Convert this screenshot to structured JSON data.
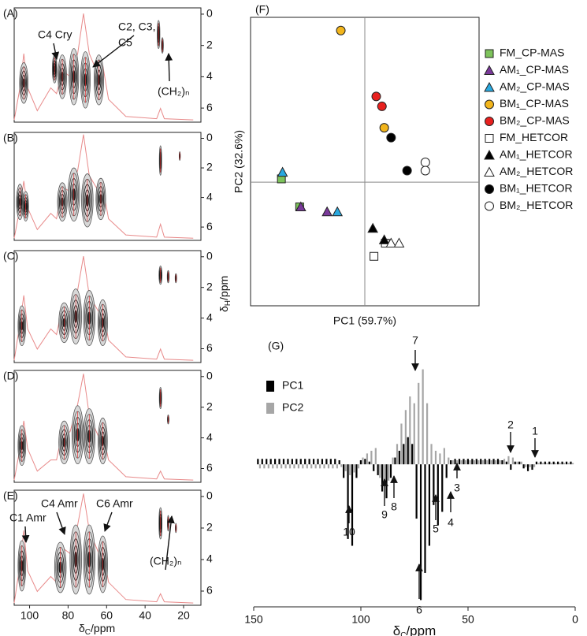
{
  "chart_data": [
    {
      "type": "contour",
      "label": "(A)",
      "xlim": [
        108,
        11
      ],
      "ylim": [
        6.9,
        -0.4
      ],
      "yticks": [
        0,
        2,
        4,
        6
      ],
      "peaks": [
        [
          103,
          4.4,
          2.2,
          1.3
        ],
        [
          87,
          3.5,
          1.2,
          0.9
        ],
        [
          83,
          4,
          2.2,
          1.4
        ],
        [
          77,
          4,
          2.5,
          1.8
        ],
        [
          71,
          4.2,
          2.5,
          1.8
        ],
        [
          64,
          4.2,
          2.5,
          1.6
        ],
        [
          33,
          1.3,
          0.7,
          0.9
        ],
        [
          31,
          2,
          0.5,
          0.5
        ]
      ],
      "spectrum": {
        "color": "#e88a8a",
        "x": [
          110,
          105,
          103,
          101,
          96,
          89,
          86,
          83,
          79,
          75,
          72,
          69,
          64,
          62,
          59,
          50,
          34,
          32,
          30,
          15
        ],
        "values": [
          0.02,
          0.3,
          0.6,
          0.3,
          0.1,
          0.3,
          0.25,
          0.45,
          0.4,
          0.6,
          0.95,
          0.6,
          0.4,
          0.5,
          0.2,
          0.05,
          0.03,
          0.12,
          0.03,
          0.02
        ]
      },
      "annotations": [
        "C4 Cry",
        "C2, C3,",
        "C5",
        "(CH₂)ₙ"
      ]
    },
    {
      "type": "contour",
      "label": "(B)",
      "xlim": [
        108,
        11
      ],
      "ylim": [
        6.9,
        -0.4
      ],
      "yticks": [
        0,
        2,
        4,
        6
      ],
      "peaks": [
        [
          105,
          4.3,
          1.8,
          1.2
        ],
        [
          102,
          4.6,
          1.5,
          1
        ],
        [
          83,
          4.3,
          2.5,
          1.3
        ],
        [
          77,
          3.8,
          3,
          1.8
        ],
        [
          70,
          4.2,
          3,
          1.8
        ],
        [
          63,
          4.1,
          2.5,
          1.4
        ],
        [
          32,
          1.5,
          0.6,
          1
        ],
        [
          22,
          1.2,
          0.3,
          0.3
        ]
      ],
      "spectrum": {
        "color": "#e88a8a",
        "x": [
          110,
          105,
          103,
          101,
          96,
          89,
          86,
          83,
          79,
          75,
          72,
          69,
          64,
          62,
          59,
          50,
          34,
          32,
          30,
          15
        ],
        "values": [
          0.02,
          0.3,
          0.55,
          0.3,
          0.1,
          0.25,
          0.2,
          0.5,
          0.45,
          0.65,
          0.98,
          0.6,
          0.45,
          0.5,
          0.2,
          0.05,
          0.03,
          0.15,
          0.03,
          0.02
        ]
      }
    },
    {
      "type": "contour",
      "label": "(C)",
      "xlim": [
        108,
        11
      ],
      "ylim": [
        6.9,
        -0.4
      ],
      "yticks": [
        0,
        2,
        4,
        6
      ],
      "ylabel": {
        "symbol": "δ",
        "sub": "H",
        "unit": "/ppm"
      },
      "peaks": [
        [
          104,
          4.5,
          2,
          1.3
        ],
        [
          82,
          4.3,
          2.8,
          1.3
        ],
        [
          76,
          3.9,
          3,
          1.8
        ],
        [
          69,
          4,
          3,
          1.8
        ],
        [
          62,
          4.3,
          2.5,
          1.5
        ],
        [
          32,
          1.2,
          0.8,
          0.6
        ],
        [
          28,
          1.3,
          0.5,
          0.4
        ],
        [
          24,
          1.4,
          0.4,
          0.3
        ]
      ],
      "spectrum": {
        "color": "#e88a8a",
        "x": [
          110,
          105,
          103,
          101,
          96,
          89,
          86,
          83,
          79,
          75,
          72,
          69,
          64,
          62,
          59,
          50,
          34,
          32,
          30,
          15
        ],
        "values": [
          0.02,
          0.35,
          0.6,
          0.3,
          0.12,
          0.3,
          0.25,
          0.5,
          0.45,
          0.65,
          0.95,
          0.6,
          0.45,
          0.5,
          0.2,
          0.05,
          0.03,
          0.12,
          0.03,
          0.02
        ]
      }
    },
    {
      "type": "contour",
      "label": "(D)",
      "xlim": [
        108,
        11
      ],
      "ylim": [
        6.9,
        -0.4
      ],
      "yticks": [
        0,
        2,
        4,
        6
      ],
      "peaks": [
        [
          104,
          4.5,
          2,
          1.3
        ],
        [
          82,
          4.3,
          2.8,
          1.4
        ],
        [
          75,
          3.8,
          3,
          1.9
        ],
        [
          69,
          3.9,
          3,
          1.8
        ],
        [
          62,
          4.2,
          2.4,
          1.5
        ],
        [
          32,
          1.4,
          0.6,
          0.7
        ],
        [
          28,
          2.8,
          0.4,
          0.3
        ]
      ],
      "spectrum": {
        "color": "#e88a8a",
        "x": [
          110,
          105,
          103,
          101,
          96,
          89,
          86,
          83,
          79,
          75,
          72,
          69,
          64,
          62,
          59,
          50,
          34,
          32,
          30,
          15
        ],
        "values": [
          0.02,
          0.3,
          0.55,
          0.3,
          0.1,
          0.2,
          0.2,
          0.45,
          0.45,
          0.7,
          0.97,
          0.6,
          0.4,
          0.45,
          0.2,
          0.05,
          0.03,
          0.1,
          0.03,
          0.02
        ]
      }
    },
    {
      "type": "contour",
      "label": "(E)",
      "xlim": [
        108,
        11
      ],
      "ylim": [
        6.9,
        -0.4
      ],
      "yticks": [
        0,
        2,
        4,
        6
      ],
      "xticks": [
        100,
        80,
        60,
        40,
        20
      ],
      "xlabel": {
        "symbol": "δ",
        "sub": "C",
        "unit": "/ppm"
      },
      "peaks": [
        [
          104,
          4.4,
          2,
          1.6
        ],
        [
          84,
          4.5,
          3,
          1.6
        ],
        [
          76,
          4,
          3,
          2.2
        ],
        [
          69,
          4,
          3,
          2.2
        ],
        [
          62,
          4.3,
          2.5,
          1.8
        ],
        [
          32,
          1.7,
          0.8,
          1
        ],
        [
          28,
          1.7,
          0.4,
          0.5
        ],
        [
          24,
          2,
          0.3,
          0.3
        ]
      ],
      "spectrum": {
        "color": "#e88a8a",
        "x": [
          110,
          105,
          103,
          101,
          96,
          89,
          86,
          83,
          79,
          75,
          72,
          69,
          64,
          62,
          59,
          50,
          34,
          32,
          30,
          15
        ],
        "values": [
          0.02,
          0.35,
          0.65,
          0.3,
          0.12,
          0.25,
          0.2,
          0.5,
          0.45,
          0.7,
          0.97,
          0.65,
          0.45,
          0.5,
          0.2,
          0.05,
          0.03,
          0.1,
          0.03,
          0.02
        ]
      },
      "annotations": [
        "C1 Amr",
        "C4 Amr",
        "C6 Amr",
        "(CH₂)ₙ"
      ]
    },
    {
      "type": "scatter",
      "label": "(F)",
      "xlabel": "PC1 (59.7%)",
      "ylabel": "PC2 (32.6%)",
      "xlim": [
        -1,
        1
      ],
      "ylim": [
        -0.75,
        1
      ],
      "series": [
        {
          "name": "FM_CP-MAS",
          "color": "#7dc35b",
          "marker": "square",
          "x": [
            -0.73,
            -0.57
          ],
          "values": [
            0.02,
            -0.15
          ]
        },
        {
          "name": "AM₁_CP-MAS",
          "color": "#7a3a9a",
          "marker": "triangle",
          "x": [
            -0.56,
            -0.33
          ],
          "values": [
            -0.15,
            -0.18
          ]
        },
        {
          "name": "AM₂_CP-MAS",
          "color": "#29a9e0",
          "marker": "triangle",
          "x": [
            -0.72,
            -0.24
          ],
          "values": [
            0.06,
            -0.18
          ]
        },
        {
          "name": "BM₁_CP-MAS",
          "color": "#f2b51c",
          "marker": "circle",
          "x": [
            -0.21,
            0.17
          ],
          "values": [
            0.92,
            0.33
          ]
        },
        {
          "name": "BM₂_CP-MAS",
          "color": "#e8201e",
          "marker": "circle",
          "x": [
            0.1,
            0.15
          ],
          "values": [
            0.52,
            0.46
          ]
        },
        {
          "name": "FM_HETCOR",
          "color": "#ffffff",
          "marker": "square",
          "x": [
            0.08,
            0.18
          ],
          "values": [
            -0.45,
            -0.37
          ]
        },
        {
          "name": "AM₁_HETCOR",
          "color": "#000000",
          "marker": "triangle",
          "x": [
            0.07,
            0.17
          ],
          "values": [
            -0.28,
            -0.35
          ]
        },
        {
          "name": "AM₂_HETCOR",
          "color": "#ffffff",
          "marker": "triangle",
          "x": [
            0.23,
            0.3
          ],
          "values": [
            -0.37,
            -0.37
          ]
        },
        {
          "name": "BM₁_HETCOR",
          "color": "#000000",
          "marker": "circle",
          "x": [
            0.23,
            0.37
          ],
          "values": [
            0.27,
            0.07
          ]
        },
        {
          "name": "BM₂_HETCOR",
          "color": "#ffffff",
          "marker": "circle",
          "x": [
            0.53,
            0.53
          ],
          "values": [
            0.12,
            0.07
          ]
        }
      ]
    },
    {
      "type": "loadings",
      "label": "(G)",
      "xlim": [
        150,
        0
      ],
      "ylim": [
        -1.05,
        0.75
      ],
      "xticks": [
        150,
        100,
        50,
        0
      ],
      "xlabel": {
        "symbol": "δ",
        "sub": "C",
        "unit": "/ppm"
      },
      "x": [
        148,
        146,
        144,
        142,
        140,
        138,
        136,
        134,
        132,
        130,
        128,
        126,
        124,
        122,
        120,
        118,
        116,
        114,
        112,
        110,
        108,
        106,
        104,
        102,
        100,
        98,
        96,
        94,
        92,
        90,
        88,
        86,
        84,
        82,
        80,
        78,
        76,
        74,
        72,
        70,
        68,
        66,
        64,
        62,
        60,
        58,
        56,
        54,
        52,
        50,
        48,
        46,
        44,
        42,
        40,
        38,
        36,
        34,
        32,
        30,
        28,
        26,
        24,
        22,
        20,
        18,
        16,
        14,
        12,
        10,
        8,
        6,
        4,
        2
      ],
      "series": [
        {
          "name": "PC1",
          "color": "#000000",
          "values": [
            0.04,
            0.04,
            0.04,
            0.04,
            0.04,
            0.04,
            0.04,
            0.04,
            0.04,
            0.04,
            0.04,
            0.04,
            0.04,
            0.04,
            0.04,
            0.04,
            0.04,
            0.04,
            0.04,
            0.03,
            -0.1,
            -0.55,
            -0.6,
            -0.1,
            0.03,
            0.04,
            0.02,
            -0.05,
            -0.08,
            -0.2,
            -0.25,
            -0.1,
            0.05,
            0.1,
            0.15,
            0.2,
            0.15,
            -0.4,
            -1.0,
            -0.8,
            -0.6,
            -0.3,
            -0.45,
            -0.35,
            -0.1,
            0.03,
            0.04,
            0.04,
            0.04,
            0.04,
            0.04,
            0.04,
            0.04,
            0.04,
            0.04,
            0.04,
            0.04,
            0.03,
            0.02,
            -0.04,
            0.02,
            0.02,
            -0.03,
            -0.05,
            -0.04,
            0.02,
            0.02,
            0.02,
            0.02,
            0.02,
            0.02,
            0.02,
            0.02,
            0.02
          ]
        },
        {
          "name": "PC2",
          "color": "#a6a6a6",
          "values": [
            -0.03,
            -0.03,
            -0.03,
            -0.03,
            -0.03,
            -0.03,
            -0.03,
            -0.03,
            -0.03,
            -0.03,
            -0.03,
            -0.03,
            -0.03,
            -0.03,
            -0.03,
            -0.03,
            -0.03,
            -0.03,
            -0.03,
            -0.02,
            -0.05,
            -0.08,
            -0.06,
            -0.03,
            0.05,
            0.08,
            0.1,
            0.12,
            -0.1,
            -0.15,
            -0.12,
            0.05,
            0.15,
            0.3,
            0.4,
            0.5,
            0.45,
            0.6,
            0.7,
            0.45,
            0.15,
            0.1,
            0.08,
            0.12,
            0.05,
            0.03,
            0.03,
            0.03,
            0.03,
            0.03,
            0.03,
            0.03,
            0.03,
            0.03,
            0.03,
            0.03,
            0.03,
            0.04,
            0.06,
            0.05,
            0.02,
            0.02,
            -0.02,
            -0.02,
            -0.02,
            0.01,
            0.01,
            0.01,
            0.01,
            0.01,
            0.01,
            0.01,
            0.01,
            0.01
          ]
        }
      ],
      "annotations": [
        "1",
        "2",
        "3",
        "4",
        "5",
        "6",
        "7",
        "8",
        "9",
        "10"
      ]
    }
  ]
}
